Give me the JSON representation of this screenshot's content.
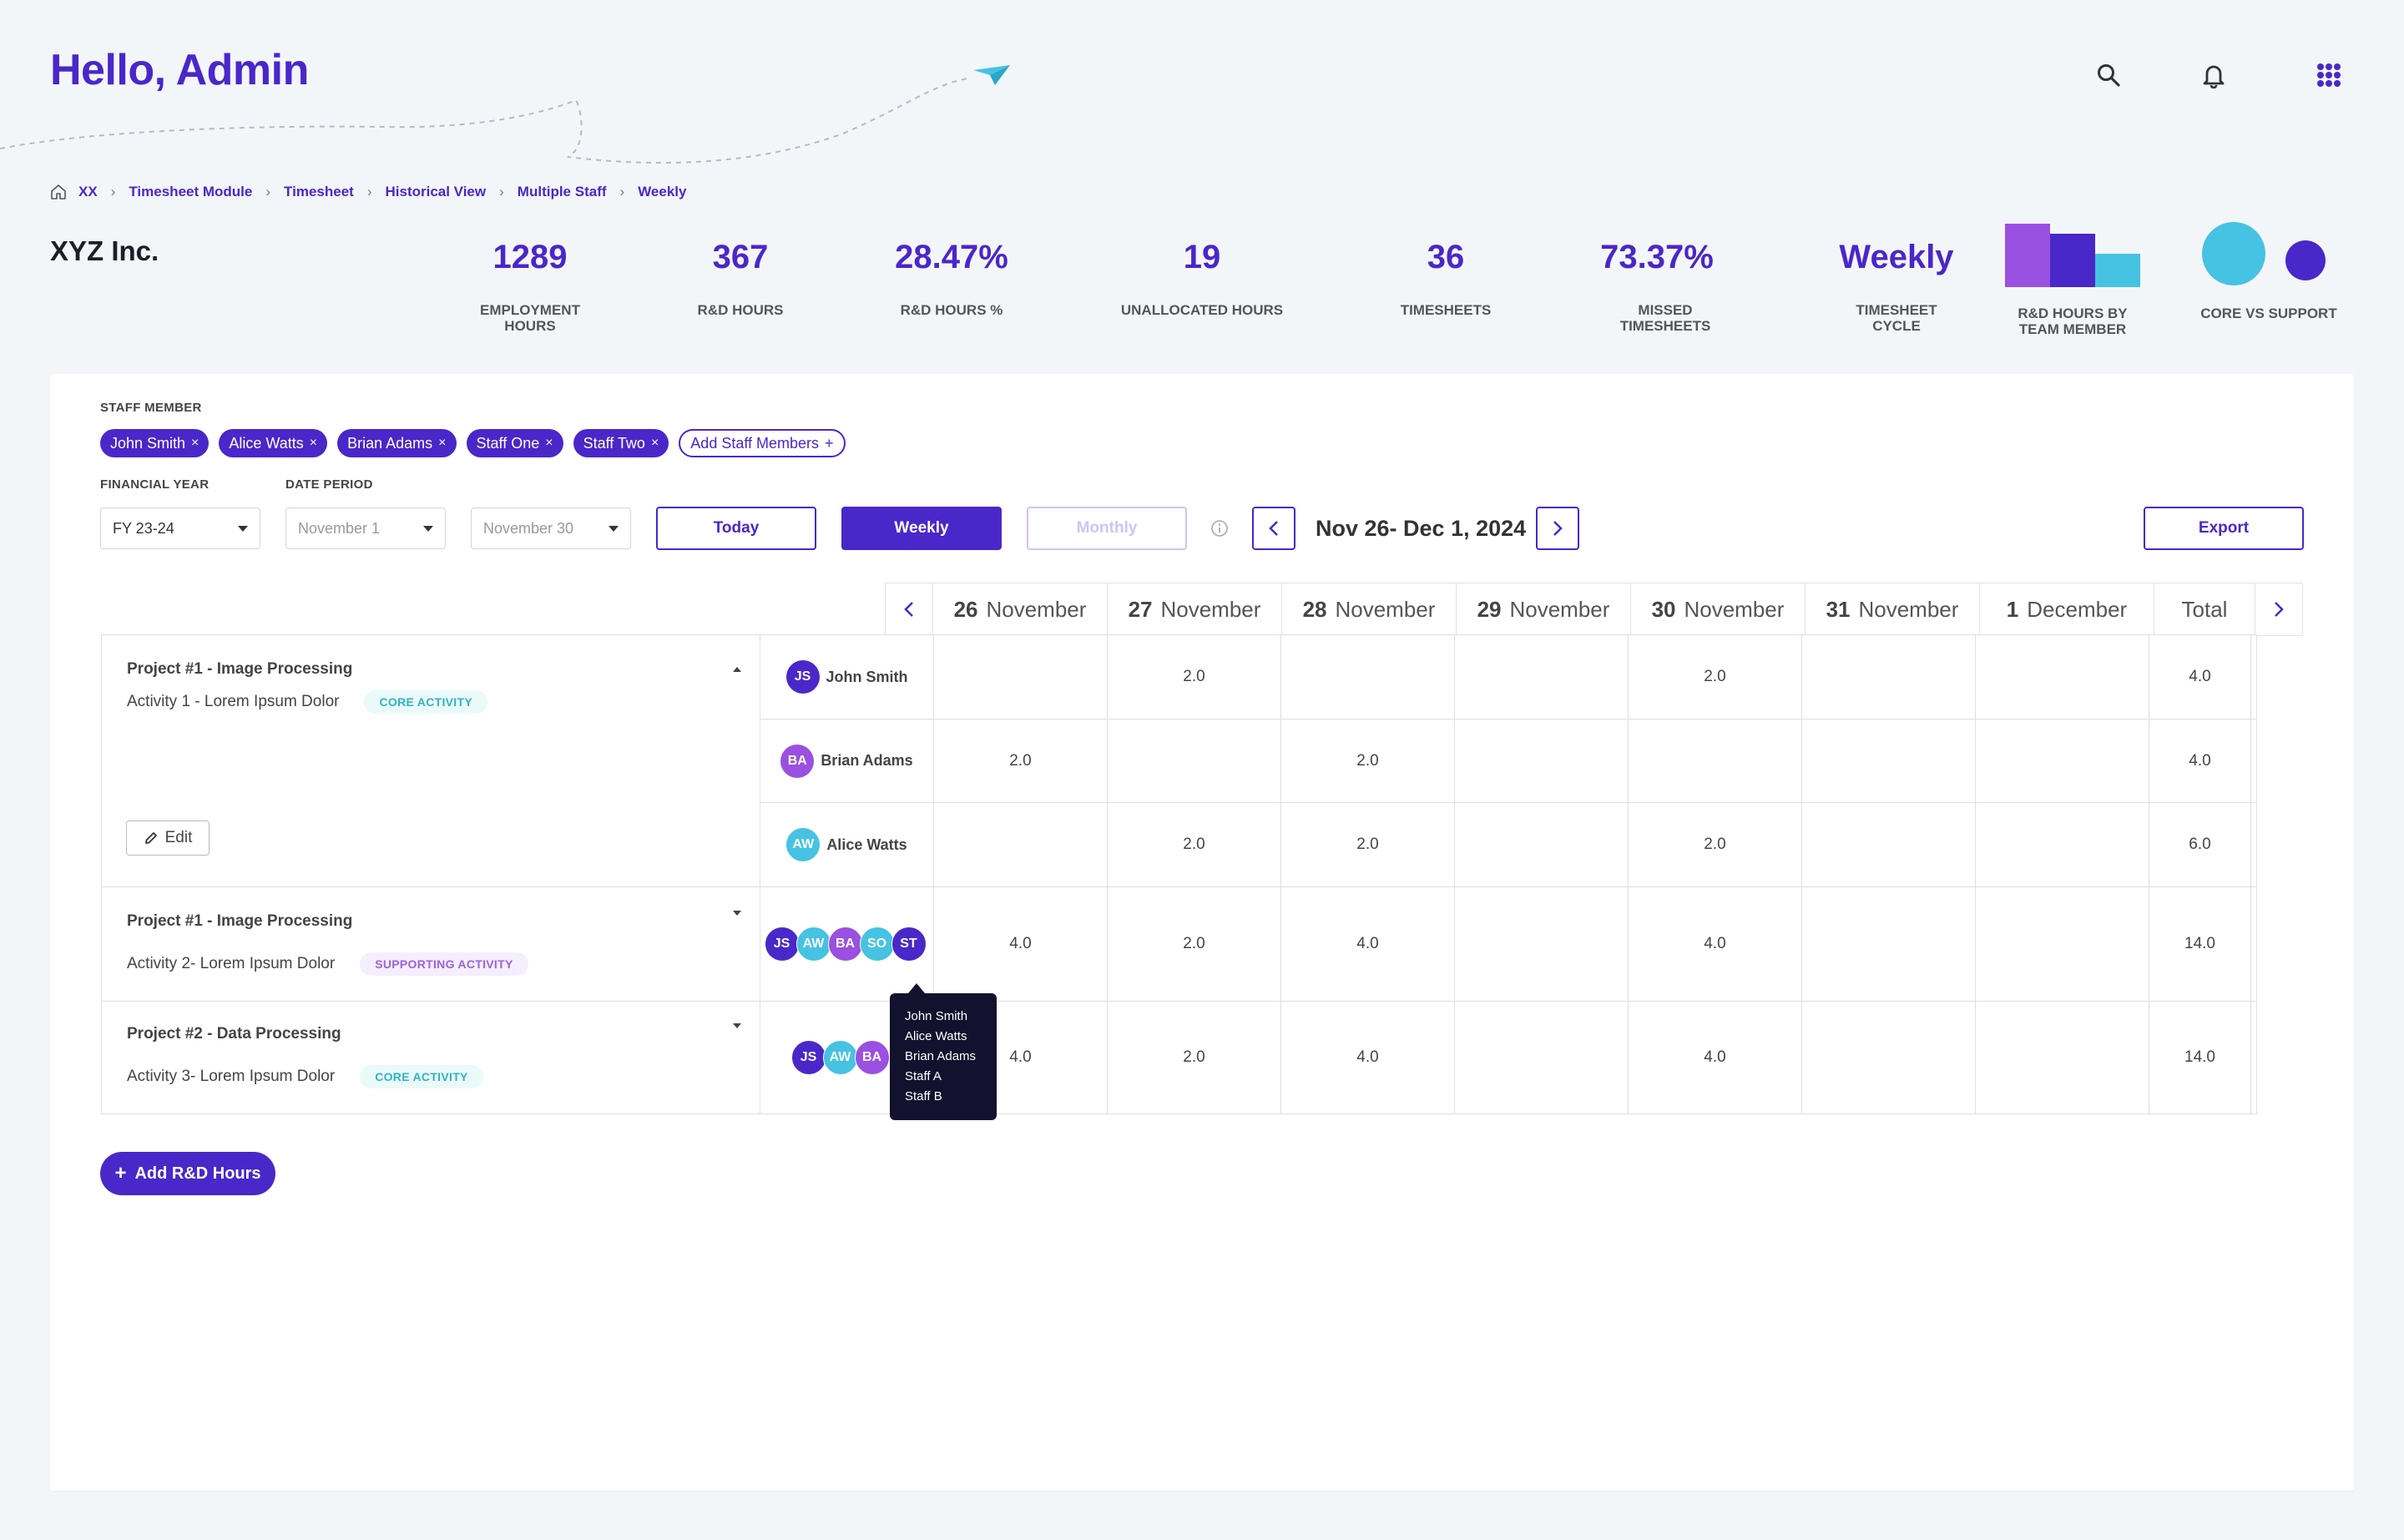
{
  "header": {
    "greeting": "Hello, Admin"
  },
  "breadcrumb": [
    "XX",
    "Timesheet Module",
    "Timesheet",
    "Historical View",
    "Multiple Staff",
    "Weekly"
  ],
  "company": "XYZ Inc.",
  "stats": [
    {
      "value": "1289",
      "label": "EMPLOYMENT HOURS"
    },
    {
      "value": "367",
      "label": "R&D HOURS"
    },
    {
      "value": "28.47%",
      "label": "R&D HOURS %"
    },
    {
      "value": "19",
      "label": "UNALLOCATED HOURS"
    },
    {
      "value": "36",
      "label": "TIMESHEETS"
    },
    {
      "value": "73.37%",
      "label": "MISSED TIMESHEETS"
    },
    {
      "value": "Weekly",
      "label": "TIMESHEET CYCLE"
    }
  ],
  "mini_charts": {
    "bar_label": "R&D HOURS BY TEAM MEMBER",
    "pie_label": "CORE VS SUPPORT"
  },
  "filters": {
    "staff_label": "STAFF MEMBER",
    "staff": [
      "John Smith",
      "Alice Watts",
      "Brian Adams",
      "Staff One",
      "Staff Two"
    ],
    "add_staff": "Add Staff Members",
    "fy_label": "FINANCIAL YEAR",
    "fy_value": "FY 23-24",
    "period_label": "DATE PERIOD",
    "period_from": "November 1",
    "period_to": "November 30",
    "today": "Today",
    "weekly": "Weekly",
    "monthly": "Monthly",
    "period_text": "Nov 26- Dec 1, 2024",
    "export": "Export"
  },
  "columns": [
    {
      "day": "26",
      "month": "November"
    },
    {
      "day": "27",
      "month": "November"
    },
    {
      "day": "28",
      "month": "November"
    },
    {
      "day": "29",
      "month": "November"
    },
    {
      "day": "30",
      "month": "November"
    },
    {
      "day": "31",
      "month": "November"
    },
    {
      "day": "1",
      "month": "December"
    }
  ],
  "total_label": "Total",
  "projects": [
    {
      "title": "Project #1 - Image Processing",
      "activity": "Activity 1 - Lorem Ipsum Dolor",
      "tag": "CORE ACTIVITY",
      "edit": "Edit",
      "rows": [
        {
          "initials": "JS",
          "name": "John Smith",
          "cells": [
            "",
            "2.0",
            "",
            "",
            "2.0",
            "",
            ""
          ],
          "total": "4.0"
        },
        {
          "initials": "BA",
          "name": "Brian Adams",
          "cells": [
            "2.0",
            "",
            "2.0",
            "",
            "",
            "",
            ""
          ],
          "total": "4.0"
        },
        {
          "initials": "AW",
          "name": "Alice Watts",
          "cells": [
            "",
            "2.0",
            "2.0",
            "",
            "2.0",
            "",
            ""
          ],
          "total": "6.0"
        }
      ]
    },
    {
      "title": "Project #1 - Image Processing",
      "activity": "Activity 2- Lorem Ipsum Dolor",
      "tag": "SUPPORTING ACTIVITY",
      "avatars": [
        "JS",
        "AW",
        "BA",
        "SO",
        "ST"
      ],
      "cells": [
        "4.0",
        "2.0",
        "4.0",
        "",
        "4.0",
        "",
        ""
      ],
      "total": "14.0"
    },
    {
      "title": "Project #2 - Data Processing",
      "activity": "Activity 3- Lorem Ipsum Dolor",
      "tag": "CORE ACTIVITY",
      "avatars": [
        "JS",
        "AW",
        "BA"
      ],
      "cells": [
        "4.0",
        "2.0",
        "4.0",
        "",
        "4.0",
        "",
        ""
      ],
      "total": "14.0"
    }
  ],
  "tooltip": [
    "John Smith",
    "Alice Watts",
    "Brian Adams",
    "Staff A",
    "Staff B"
  ],
  "add_hours": "Add R&D Hours",
  "colors": {
    "brand": "#4a27c9",
    "purple": "#9a50e0",
    "cyan": "#46c2e2"
  },
  "icons": [
    "search-icon",
    "bell-icon",
    "apps-grid-icon",
    "home-icon",
    "paper-plane-icon",
    "chevron-left-icon",
    "chevron-right-icon",
    "info-icon",
    "pencil-icon",
    "plus-icon"
  ]
}
